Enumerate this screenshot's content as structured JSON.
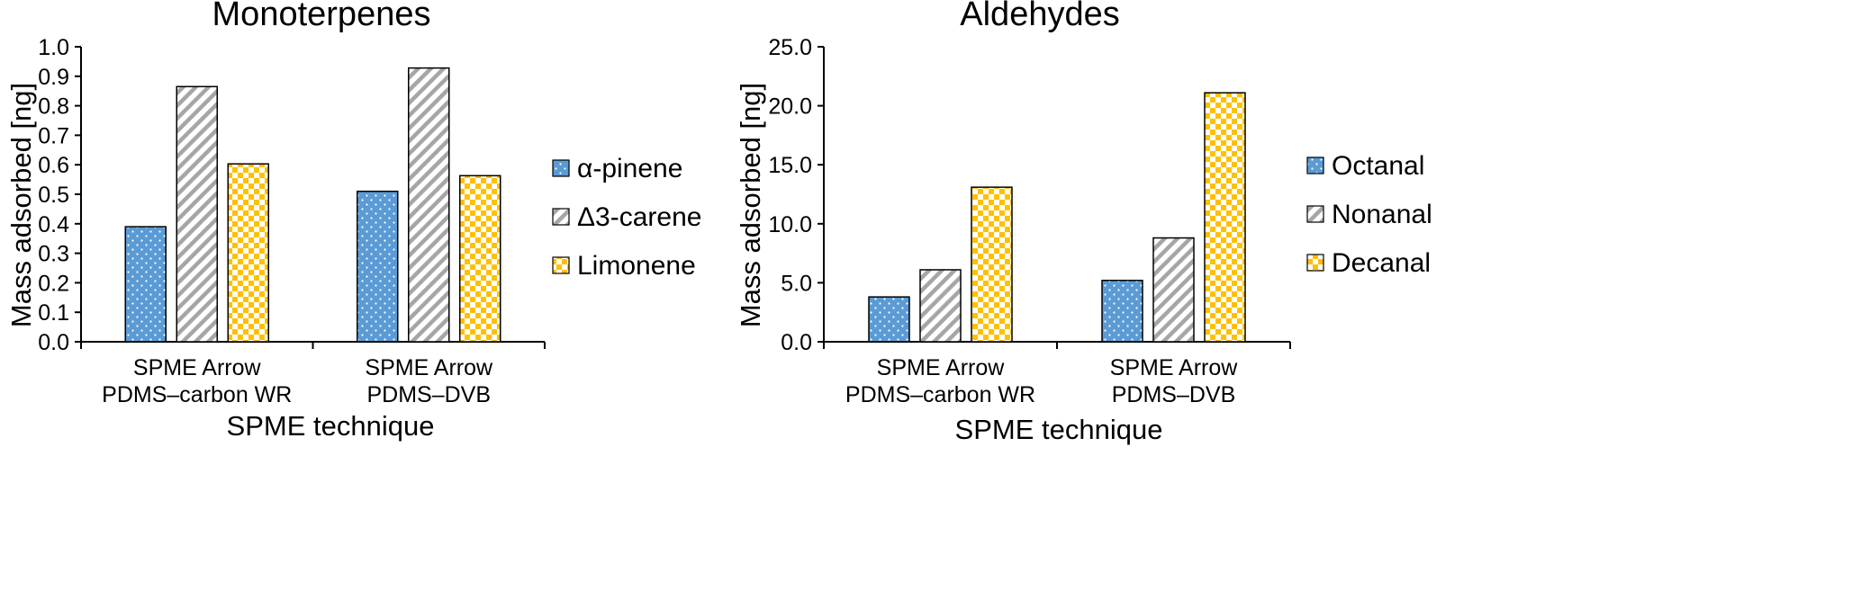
{
  "chart_data": [
    {
      "type": "bar",
      "title": "Monoterpenes",
      "xlabel": "SPME technique",
      "ylabel": "Mass adsorbed [ng]",
      "categories": [
        [
          "SPME Arrow",
          "PDMS–carbon WR"
        ],
        [
          "SPME Arrow",
          "PDMS–DVB"
        ]
      ],
      "ylim": [
        0,
        1.0
      ],
      "yticks": [
        "0.0",
        "0.1",
        "0.2",
        "0.3",
        "0.4",
        "0.5",
        "0.6",
        "0.7",
        "0.8",
        "0.9",
        "1.0"
      ],
      "legend": "right",
      "grid": false,
      "series": [
        {
          "name": "α-pinene",
          "values": [
            0.39,
            0.51
          ],
          "color": "#5b9bd5",
          "pattern": "dots"
        },
        {
          "name": "Δ3-carene",
          "values": [
            0.865,
            0.928
          ],
          "color": "#bfbfbf",
          "pattern": "stripes"
        },
        {
          "name": "Limonene",
          "values": [
            0.603,
            0.563
          ],
          "color": "#ffc000",
          "pattern": "checker"
        }
      ]
    },
    {
      "type": "bar",
      "title": "Aldehydes",
      "xlabel": "SPME technique",
      "ylabel": "Mass adsorbed [ng]",
      "categories": [
        [
          "SPME Arrow",
          "PDMS–carbon WR"
        ],
        [
          "SPME Arrow",
          "PDMS–DVB"
        ]
      ],
      "ylim": [
        0,
        25.0
      ],
      "yticks": [
        "0.0",
        "5.0",
        "10.0",
        "15.0",
        "20.0",
        "25.0"
      ],
      "legend": "right",
      "grid": false,
      "series": [
        {
          "name": "Octanal",
          "values": [
            3.8,
            5.2
          ],
          "color": "#5b9bd5",
          "pattern": "dots"
        },
        {
          "name": "Nonanal",
          "values": [
            6.1,
            8.8
          ],
          "color": "#bfbfbf",
          "pattern": "stripes"
        },
        {
          "name": "Decanal",
          "values": [
            13.1,
            21.1
          ],
          "color": "#ffc000",
          "pattern": "checker"
        }
      ]
    }
  ]
}
